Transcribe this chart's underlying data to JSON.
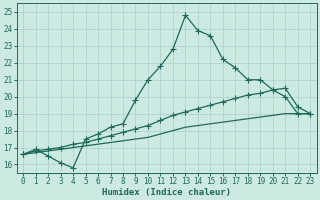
{
  "xlabel": "Humidex (Indice chaleur)",
  "xlim": [
    -0.5,
    23.5
  ],
  "ylim": [
    15.5,
    25.5
  ],
  "xticks": [
    0,
    1,
    2,
    3,
    4,
    5,
    6,
    7,
    8,
    9,
    10,
    11,
    12,
    13,
    14,
    15,
    16,
    17,
    18,
    19,
    20,
    21,
    22,
    23
  ],
  "yticks": [
    16,
    17,
    18,
    19,
    20,
    21,
    22,
    23,
    24,
    25
  ],
  "bg_color": "#cce9e2",
  "grid_color": "#aacfc8",
  "line_color": "#1a6b5a",
  "line1_x": [
    0,
    1,
    2,
    3,
    4,
    5,
    6,
    7,
    8,
    9,
    10,
    11,
    12,
    13,
    14,
    15,
    16,
    17,
    18,
    19,
    20,
    21,
    22,
    23
  ],
  "line1_y": [
    16.6,
    16.9,
    16.5,
    16.1,
    15.8,
    17.5,
    17.8,
    18.2,
    18.4,
    19.8,
    21.0,
    21.8,
    22.8,
    24.8,
    23.9,
    23.6,
    22.2,
    21.7,
    21.0,
    21.0,
    20.4,
    20.0,
    19.0,
    19.0
  ],
  "line2_x": [
    0,
    1,
    2,
    3,
    4,
    5,
    6,
    7,
    8,
    9,
    10,
    11,
    12,
    13,
    14,
    15,
    16,
    17,
    18,
    19,
    20,
    21,
    22,
    23
  ],
  "line2_y": [
    16.6,
    16.8,
    16.9,
    17.0,
    17.2,
    17.3,
    17.5,
    17.7,
    17.9,
    18.1,
    18.3,
    18.6,
    18.9,
    19.1,
    19.3,
    19.5,
    19.7,
    19.9,
    20.1,
    20.2,
    20.4,
    20.5,
    19.4,
    19.0
  ],
  "line3_x": [
    0,
    1,
    2,
    3,
    4,
    5,
    6,
    7,
    8,
    9,
    10,
    11,
    12,
    13,
    14,
    15,
    16,
    17,
    18,
    19,
    20,
    21,
    22,
    23
  ],
  "line3_y": [
    16.6,
    16.7,
    16.8,
    16.9,
    17.0,
    17.1,
    17.2,
    17.3,
    17.4,
    17.5,
    17.6,
    17.8,
    18.0,
    18.2,
    18.3,
    18.4,
    18.5,
    18.6,
    18.7,
    18.8,
    18.9,
    19.0,
    19.0,
    19.0
  ],
  "tick_fontsize": 5.5,
  "xlabel_fontsize": 6.5
}
